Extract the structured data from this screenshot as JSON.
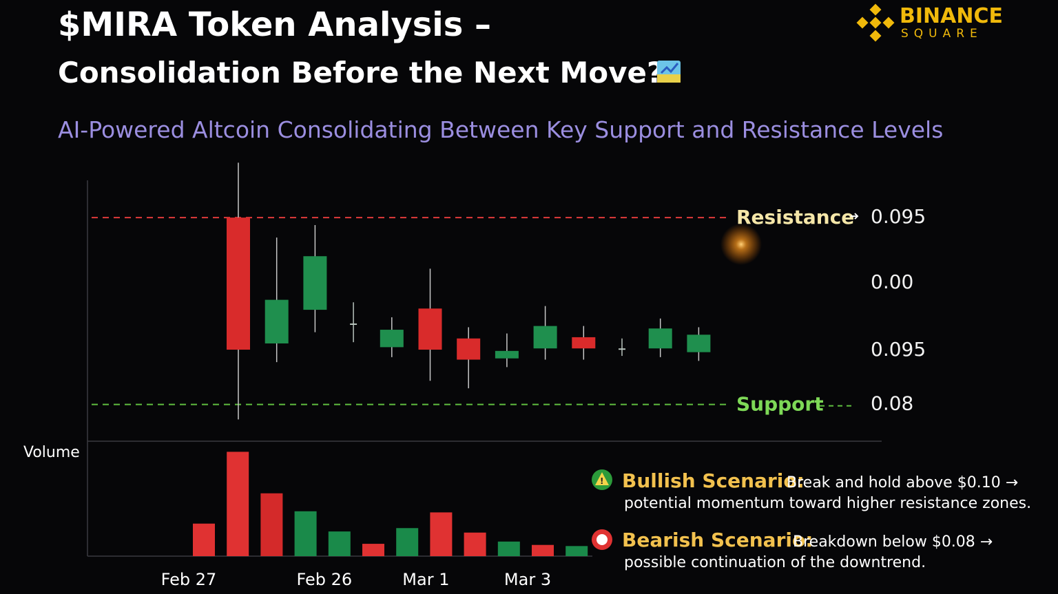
{
  "header": {
    "title": "$MIRA Token Analysis –",
    "subtitle": "Consolidation Before the Next Move?",
    "lead": "AI-Powered Altcoin Consolidating Between Key Support and Resistance Levels",
    "logo_top": "BINANCE",
    "logo_bottom": "SQUARE"
  },
  "chart_data": [
    {
      "type": "candlestick",
      "open": [
        0.095,
        0.0849,
        0.0876,
        0.0865,
        0.0846,
        0.0877,
        0.0853,
        0.0837,
        0.0845,
        0.0854,
        0.0845,
        0.0845,
        0.0842
      ],
      "high": [
        0.0994,
        0.0934,
        0.0944,
        0.0882,
        0.087,
        0.0909,
        0.0862,
        0.0857,
        0.0879,
        0.0863,
        0.0853,
        0.0869,
        0.0862
      ],
      "low": [
        0.0788,
        0.0834,
        0.0858,
        0.085,
        0.0838,
        0.0819,
        0.0813,
        0.083,
        0.0836,
        0.0836,
        0.0839,
        0.0838,
        0.0835
      ],
      "close": [
        0.0844,
        0.0884,
        0.0919,
        0.0865,
        0.086,
        0.0844,
        0.0836,
        0.0843,
        0.0863,
        0.0845,
        0.0845,
        0.0861,
        0.0856
      ],
      "up_color": "#1f8f4e",
      "down_color": "#d92b2b",
      "flat_color": "#b8c4bd",
      "ylim": [
        0.077,
        0.0997
      ],
      "resistance": {
        "label": "Resistance",
        "value": 0.095,
        "color": "#e03b3b"
      },
      "support": {
        "label": "Support",
        "value": 0.08,
        "color": "#5fbf3f"
      },
      "axis_labels": [
        "0.00",
        "0.095"
      ]
    },
    {
      "type": "bar",
      "y_label": "Volume",
      "categories": [
        "Feb 27",
        null,
        null,
        null,
        "Feb 26",
        null,
        null,
        "Mar 1",
        null,
        null,
        "Mar 3",
        null
      ],
      "values": [
        29,
        93,
        56,
        40,
        22,
        11,
        25,
        39,
        21,
        13,
        10,
        9
      ],
      "colors": [
        "#e03232",
        "#e03232",
        "#d42a2a",
        "#1a8a4a",
        "#1a8a4a",
        "#e03232",
        "#1a8a4a",
        "#e03232",
        "#e03232",
        "#1a8a4a",
        "#e03232",
        "#1a8a4a"
      ],
      "ylim": [
        0,
        100
      ]
    }
  ],
  "scenarios": [
    {
      "heading": "Bullish Scenario:",
      "text": "Break and hold above $0.10 →",
      "detail": "potential momentum toward higher resistance zones."
    },
    {
      "heading": "Bearish Scenario:",
      "text": "Breakdown below $0.08 →",
      "detail": "possible continuation of the downtrend."
    }
  ]
}
